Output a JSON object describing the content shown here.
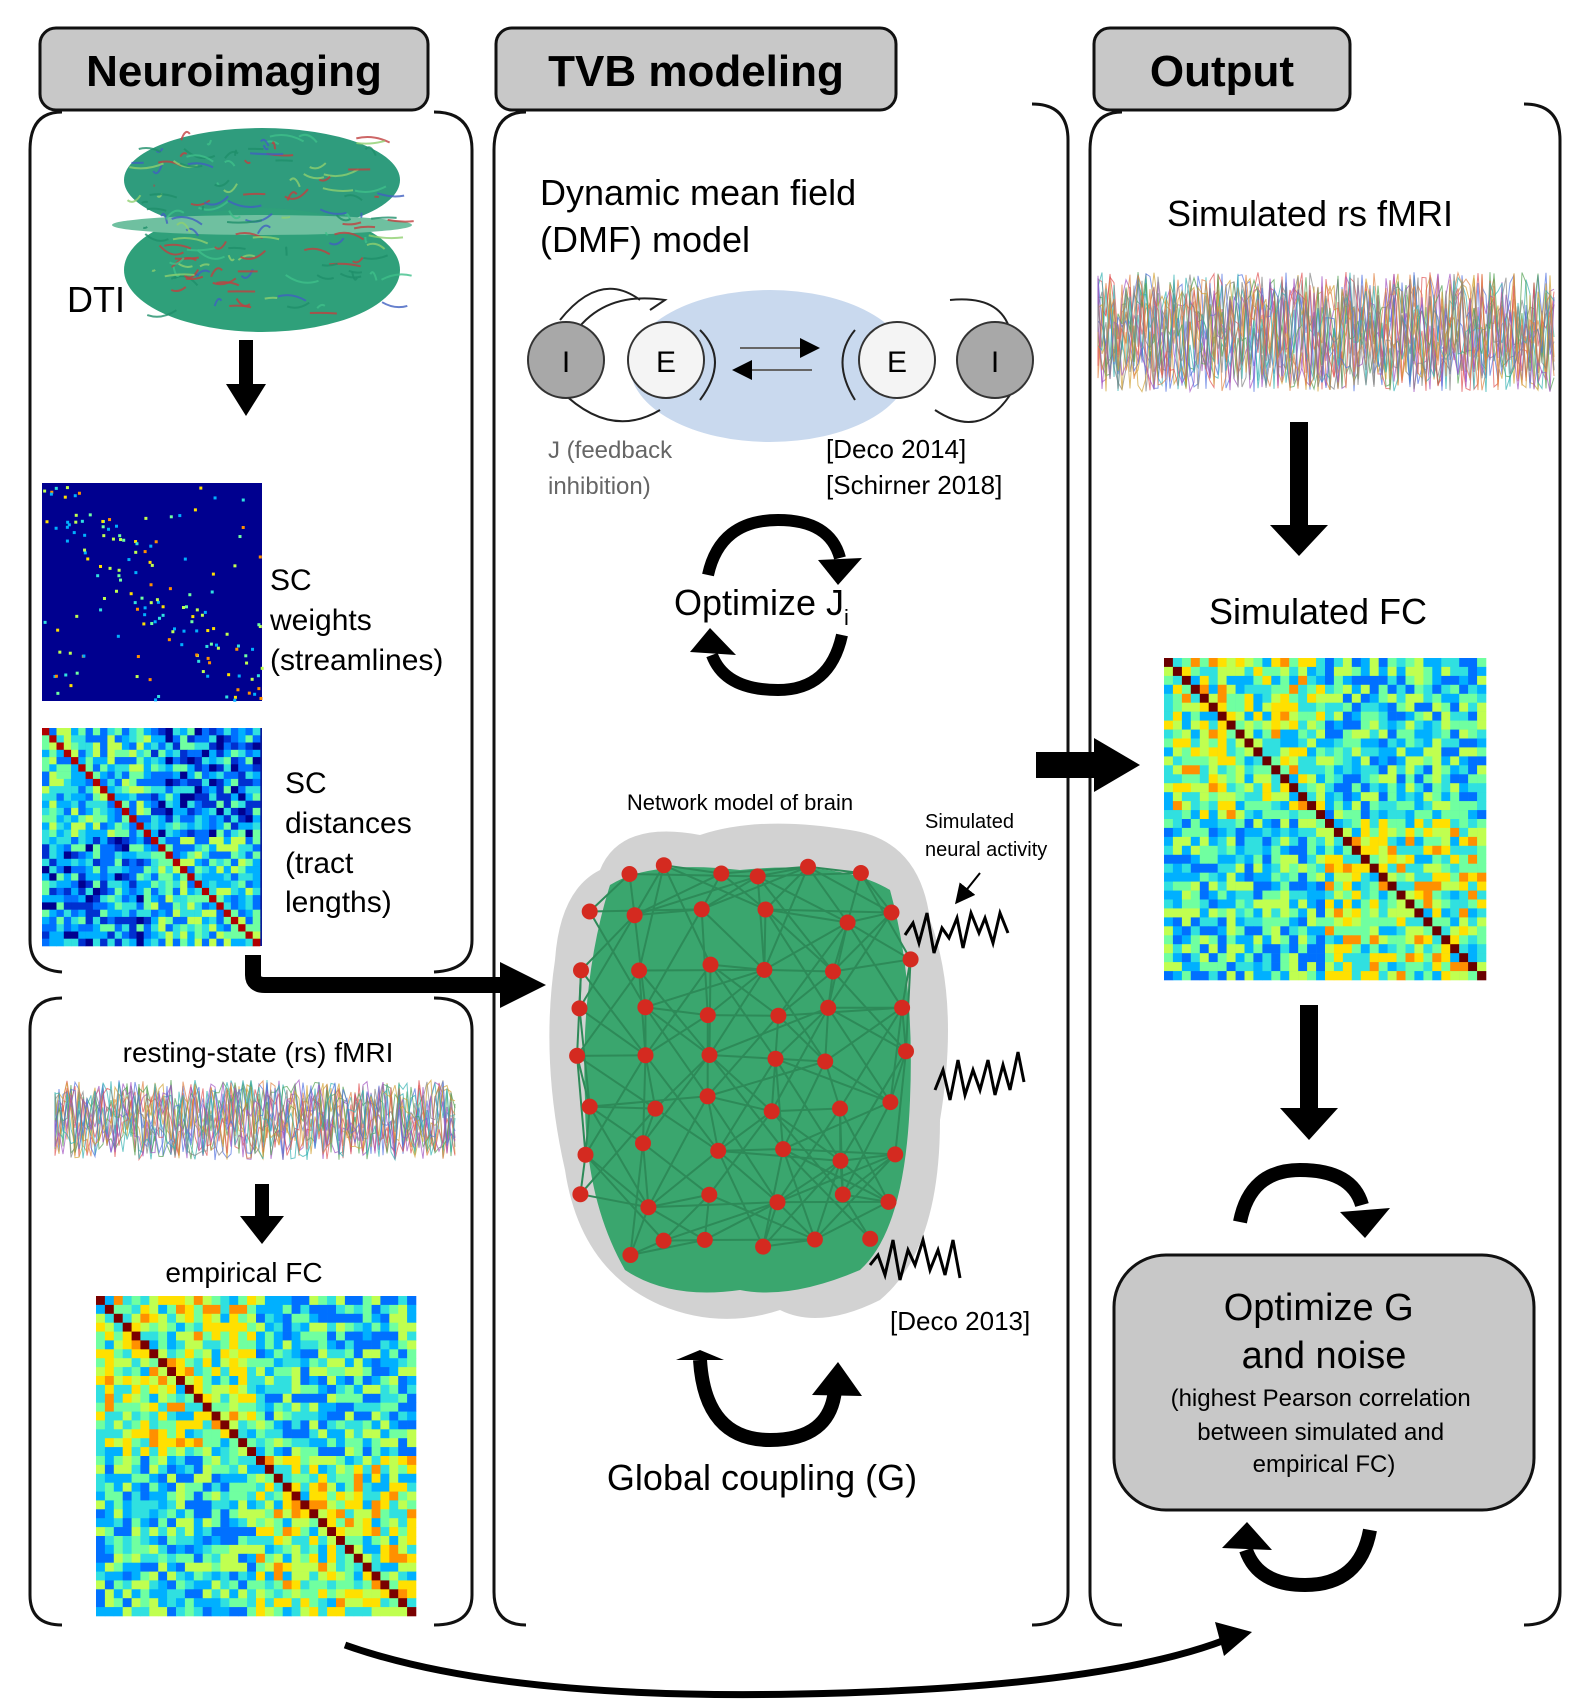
{
  "headers": {
    "neuroimaging": "Neuroimaging",
    "tvb": "TVB modeling",
    "output": "Output"
  },
  "neuroimaging": {
    "dti_label": "DTI",
    "sc_weights": [
      "SC",
      "weights",
      "(streamlines)"
    ],
    "sc_distances": [
      "SC",
      "distances",
      "(tract",
      "lengths)"
    ],
    "rs_fmri": "resting-state (rs) fMRI",
    "empirical_fc": "empirical FC"
  },
  "tvb": {
    "dmf_title": [
      "Dynamic mean field",
      "(DMF) model"
    ],
    "node_i": "I",
    "node_e": "E",
    "feedback": [
      "J (feedback",
      "inhibition)"
    ],
    "refs_dmf": [
      "[Deco 2014]",
      "[Schirner 2018]"
    ],
    "optimize_j": "Optimize J",
    "optimize_j_sub": "i",
    "network_title": "Network model of brain",
    "simulated_activity": [
      "Simulated",
      "neural activity"
    ],
    "ref_network": "[Deco 2013]",
    "global_coupling": "Global coupling (G)"
  },
  "output": {
    "simulated_fmri": "Simulated rs fMRI",
    "simulated_fc": "Simulated FC",
    "optimize_g": [
      "Optimize G",
      "and noise"
    ],
    "optimize_g_note": [
      "(highest Pearson correlation",
      "between simulated and",
      "empirical FC)"
    ]
  },
  "colors": {
    "header_fill": "#c8c8c8",
    "optimize_box_fill": "#c8c8c8",
    "matrix_dark_blue": "#00008f",
    "brain_green": "#3aa66e",
    "node_red": "#d42a20",
    "dmf_oval": "#c9d9ee",
    "arrow": "#000000"
  }
}
